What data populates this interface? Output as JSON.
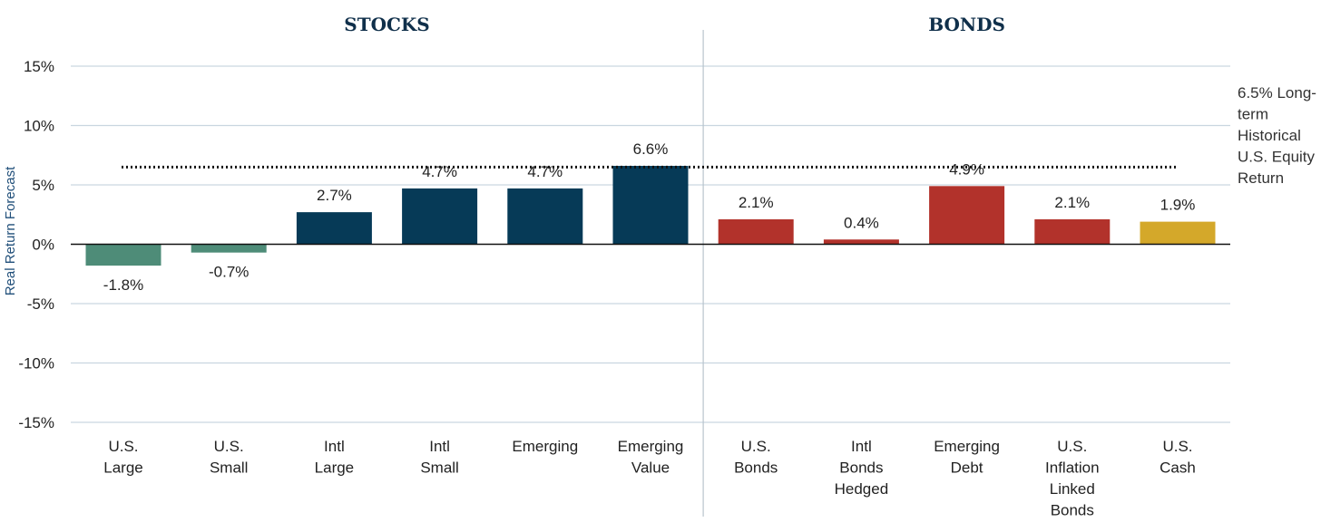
{
  "chart_data": {
    "type": "bar",
    "ylabel": "Real Return Forecast",
    "ylim": [
      -15,
      15
    ],
    "yticks": [
      15,
      10,
      5,
      0,
      -5,
      -10,
      -15
    ],
    "ytick_labels": [
      "15%",
      "10%",
      "5%",
      "0%",
      "-5%",
      "-10%",
      "-15%"
    ],
    "groups": [
      {
        "label": "STOCKS",
        "start": 0,
        "end": 5
      },
      {
        "label": "BONDS",
        "start": 6,
        "end": 10
      }
    ],
    "categories": [
      [
        "U.S.",
        "Large"
      ],
      [
        "U.S.",
        "Small"
      ],
      [
        "Intl",
        "Large"
      ],
      [
        "Intl",
        "Small"
      ],
      [
        "Emerging"
      ],
      [
        "Emerging",
        "Value"
      ],
      [
        "U.S.",
        "Bonds"
      ],
      [
        "Intl",
        "Bonds",
        "Hedged"
      ],
      [
        "Emerging",
        "Debt"
      ],
      [
        "U.S.",
        "Inflation",
        "Linked",
        "Bonds"
      ],
      [
        "U.S.",
        "Cash"
      ]
    ],
    "values": [
      -1.8,
      -0.7,
      2.7,
      4.7,
      4.7,
      6.6,
      2.1,
      0.4,
      4.9,
      2.1,
      1.9
    ],
    "value_labels": [
      "-1.8%",
      "-0.7%",
      "2.7%",
      "4.7%",
      "4.7%",
      "6.6%",
      "2.1%",
      "0.4%",
      "4.9%",
      "2.1%",
      "1.9%"
    ],
    "colors": [
      "#4e8c78",
      "#4e8c78",
      "#063a57",
      "#063a57",
      "#063a57",
      "#063a57",
      "#b2322b",
      "#b2322b",
      "#b2322b",
      "#b2322b",
      "#d4a82a"
    ],
    "reference_line": {
      "value": 6.5,
      "label": [
        "6.5% Long-",
        "term",
        "Historical",
        "U.S. Equity",
        "Return"
      ]
    },
    "grid": true,
    "legend": "none"
  }
}
